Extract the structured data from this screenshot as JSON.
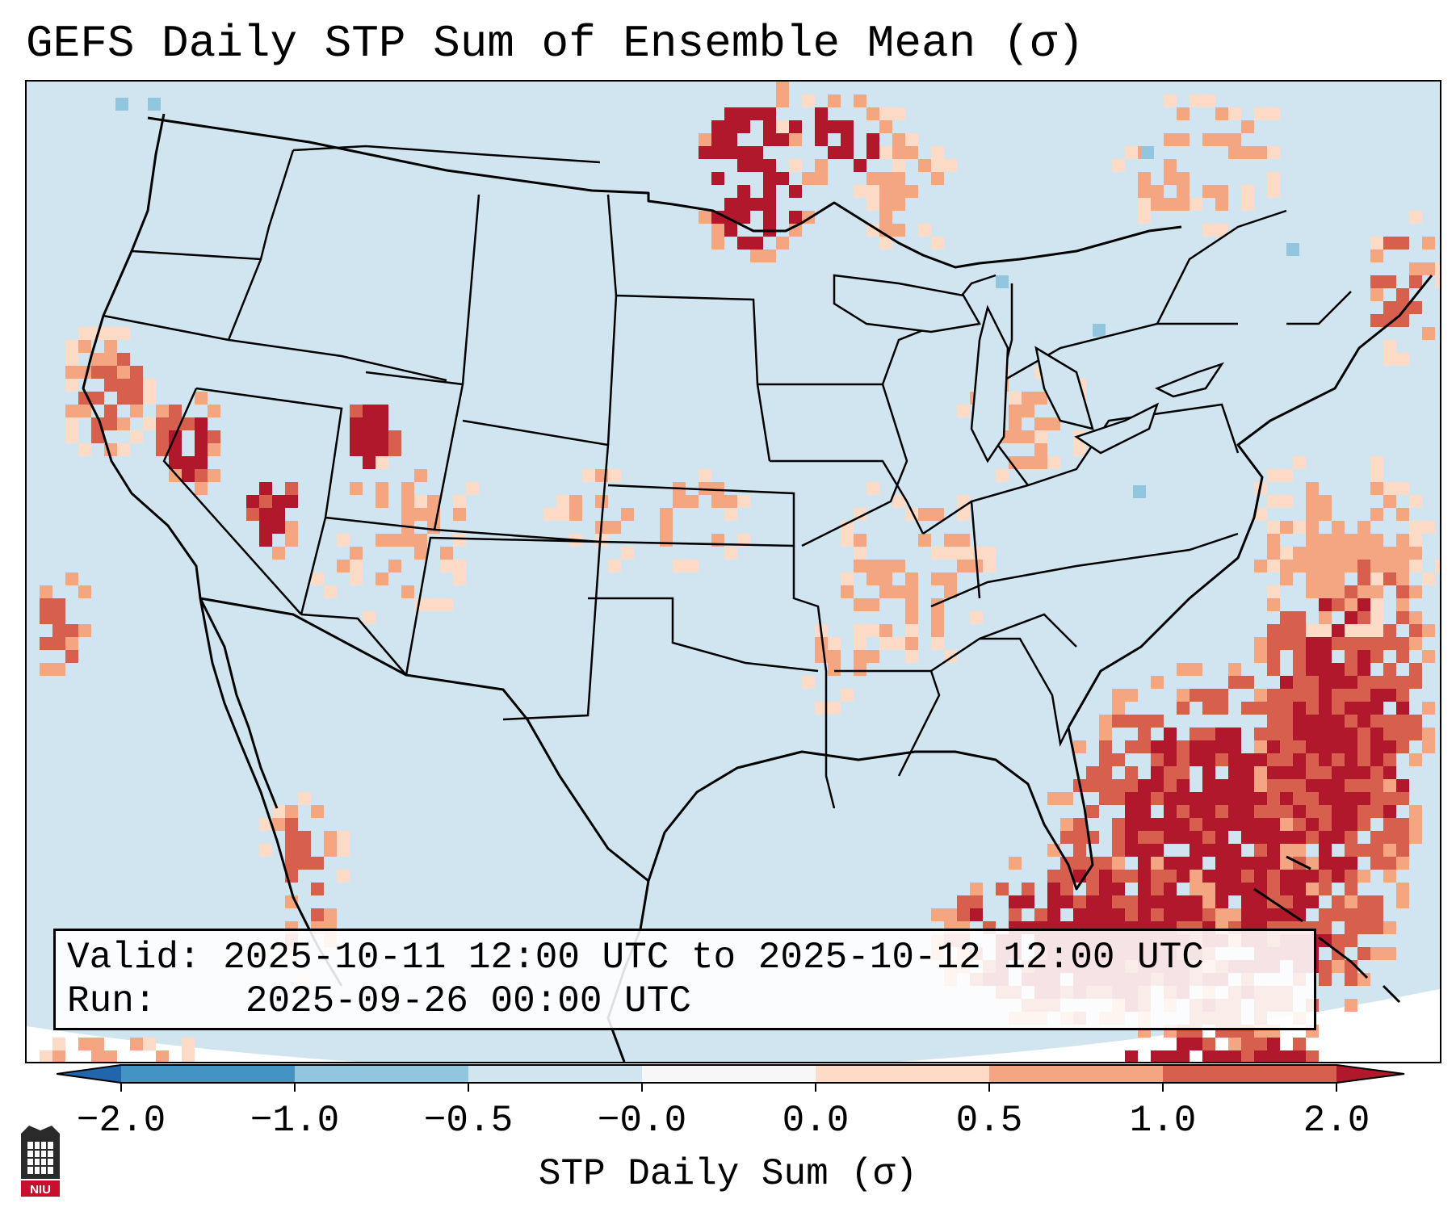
{
  "title": "GEFS Daily STP Sum of Ensemble Mean (σ)",
  "info": {
    "valid_label": "Valid:",
    "valid_text": "2025-10-11 12:00 UTC to 2025-10-12 12:00 UTC",
    "run_label": "Run:",
    "run_text": "2025-09-26 00:00 UTC"
  },
  "colorbar": {
    "label": "STP Daily Sum (σ)",
    "ticks": [
      "−2.0",
      "−1.0",
      "−0.5",
      "−0.0",
      "0.0",
      "0.5",
      "1.0",
      "2.0"
    ],
    "colors": [
      "#4393c3",
      "#92c5de",
      "#d1e5f0",
      "#fddbc7",
      "#f4a582",
      "#d6604d",
      "#b2182b"
    ],
    "extend_low_color": "#2166ac",
    "extend_high_color": "#b2182b"
  },
  "map": {
    "background_color": "#d1e5f0",
    "ocean_offmap_color": "#ffffff",
    "boundary_color": "#000000"
  },
  "logo": {
    "text": "NIU"
  }
}
